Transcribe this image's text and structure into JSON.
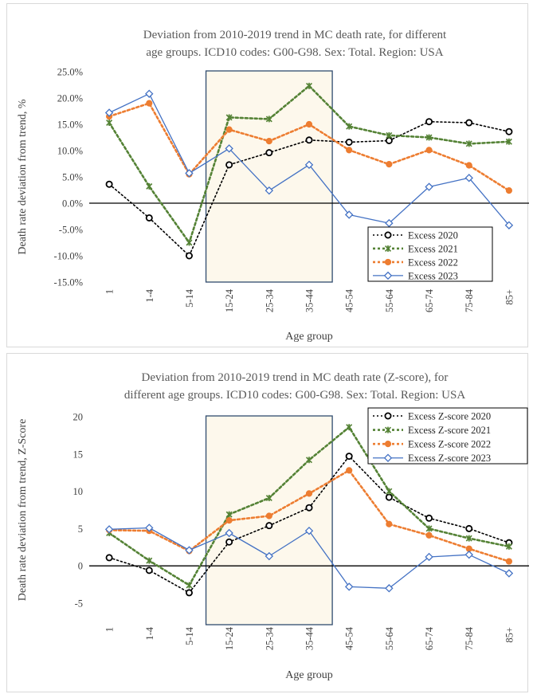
{
  "chart_data": [
    {
      "type": "line",
      "title_line1": "Deviation from 2010-2019 trend in MC death rate, for different",
      "title_line2": "age groups. ICD10 codes: G00-G98. Sex: Total. Region: USA",
      "xlabel": "Age group",
      "ylabel": "Death rate deviation from trend, %",
      "categories": [
        "1",
        "1-4",
        "5-14",
        "15-24",
        "25-34",
        "35-44",
        "45-54",
        "55-64",
        "65-74",
        "75-84",
        "85+"
      ],
      "ylim": [
        -15,
        25
      ],
      "yticks": [
        -15,
        -10,
        -5,
        0,
        5,
        10,
        15,
        20,
        25
      ],
      "ytick_labels": [
        "-15.0%",
        "-10.0%",
        "-5.0%",
        "0.0%",
        "5.0%",
        "10.0%",
        "15.0%",
        "20.0%",
        "25.0%"
      ],
      "highlight_range": [
        "15-24",
        "35-44"
      ],
      "legend_position": "bottom-right",
      "series": [
        {
          "name": "Excess 2020",
          "color": "#000000",
          "values": [
            3.6,
            -2.8,
            -10.0,
            7.3,
            9.6,
            12.0,
            11.6,
            11.9,
            15.5,
            15.3,
            13.6
          ]
        },
        {
          "name": "Excess 2021",
          "color": "#548235",
          "values": [
            15.3,
            3.2,
            -7.5,
            16.3,
            16.0,
            22.3,
            14.6,
            12.9,
            12.5,
            11.3,
            11.7
          ]
        },
        {
          "name": "Excess 2022",
          "color": "#ed7d31",
          "values": [
            16.5,
            19.0,
            5.5,
            14.0,
            11.8,
            15.0,
            10.1,
            7.4,
            10.1,
            7.2,
            2.4
          ]
        },
        {
          "name": "Excess 2023",
          "color": "#4472c4",
          "values": [
            17.2,
            20.8,
            5.7,
            10.4,
            2.4,
            7.3,
            -2.2,
            -3.8,
            3.1,
            4.8,
            -4.2
          ]
        }
      ]
    },
    {
      "type": "line",
      "title_line1": "Deviation from 2010-2019 trend in MC death rate (Z-score), for",
      "title_line2": "different age groups. ICD10 codes: G00-G98. Sex: Total. Region: USA",
      "xlabel": "Age group",
      "ylabel": "Death rate deviation from trend, Z-Score",
      "categories": [
        "1",
        "1-4",
        "5-14",
        "15-24",
        "25-34",
        "35-44",
        "45-54",
        "55-64",
        "65-74",
        "75-84",
        "85+"
      ],
      "ylim": [
        -5,
        20
      ],
      "yticks": [
        -5,
        0,
        5,
        10,
        15,
        20
      ],
      "ytick_labels": [
        "-5",
        "0",
        "5",
        "10",
        "15",
        "20"
      ],
      "highlight_range": [
        "15-24",
        "35-44"
      ],
      "legend_position": "top-right",
      "series": [
        {
          "name": "Excess Z-score 2020",
          "color": "#000000",
          "values": [
            1.1,
            -0.6,
            -3.6,
            3.2,
            5.4,
            7.8,
            14.7,
            9.2,
            6.4,
            5.0,
            3.1
          ]
        },
        {
          "name": "Excess Z-score 2021",
          "color": "#548235",
          "values": [
            4.4,
            0.7,
            -2.6,
            6.9,
            9.1,
            14.2,
            18.6,
            10.0,
            5.0,
            3.7,
            2.6
          ]
        },
        {
          "name": "Excess Z-score 2022",
          "color": "#ed7d31",
          "values": [
            4.8,
            4.7,
            2.0,
            6.1,
            6.7,
            9.7,
            12.8,
            5.6,
            4.1,
            2.3,
            0.6
          ]
        },
        {
          "name": "Excess Z-score 2023",
          "color": "#4472c4",
          "values": [
            4.9,
            5.1,
            2.1,
            4.4,
            1.3,
            4.7,
            -2.8,
            -3.0,
            1.2,
            1.5,
            -1.0
          ]
        }
      ]
    }
  ]
}
